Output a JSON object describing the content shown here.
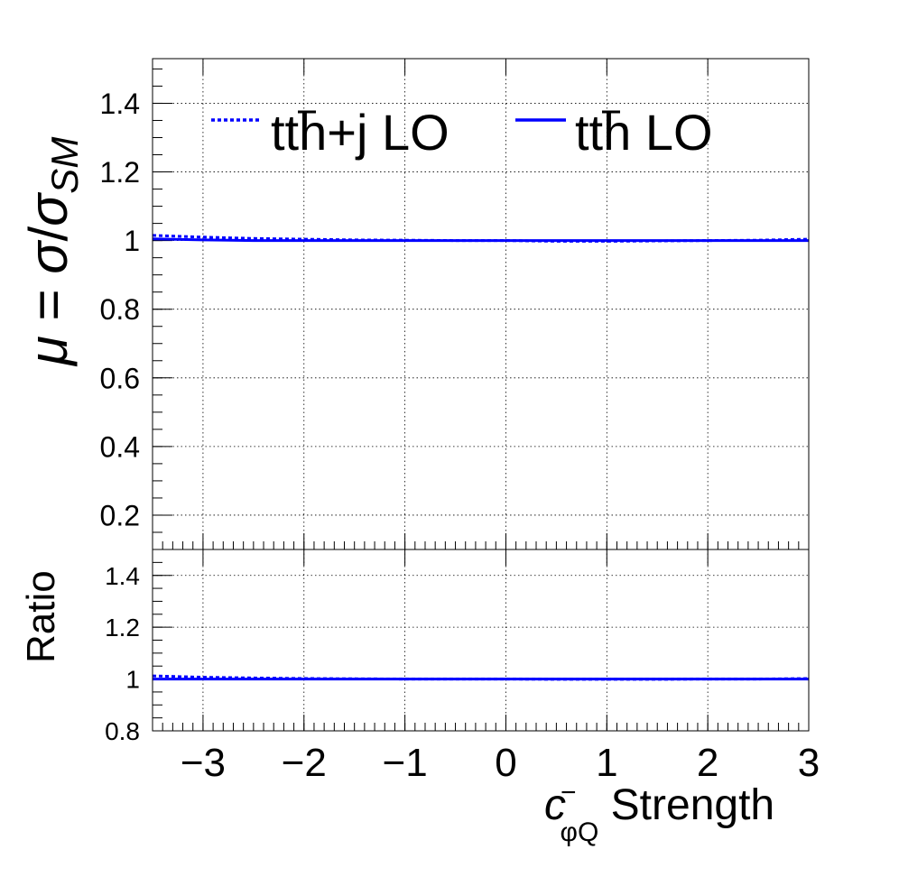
{
  "chart_data": [
    {
      "type": "line",
      "panel": "main",
      "ylabel": "μ = σ/σ_SM",
      "ylabel_parts": {
        "mu": "μ",
        "eq": " = ",
        "sigma": "σ",
        "slash": "/",
        "sigma2": "σ",
        "sub": "SM"
      },
      "xlim": [
        -3.5,
        3.0
      ],
      "ylim": [
        0.1,
        1.53
      ],
      "grid": true,
      "yticks": [
        0.2,
        0.4,
        0.6,
        0.8,
        1,
        1.2,
        1.4
      ],
      "ytick_labels": [
        "0.2",
        "0.4",
        "0.6",
        "0.8",
        "1",
        "1.2",
        "1.4"
      ],
      "legend": {
        "placement": "top",
        "entries": [
          {
            "label": "tt̄h+j LO",
            "base": "tt",
            "bar": "t",
            "rest": "h+j LO",
            "style": "dotted",
            "color": "#0000ff"
          },
          {
            "label": "tt̄h LO",
            "base": "tt",
            "bar": "t",
            "rest": "h LO",
            "style": "solid",
            "color": "#0000ff"
          }
        ]
      },
      "series": [
        {
          "name": "tt̄h+j LO",
          "style": "dotted",
          "color": "#0000ff",
          "x": [
            -3.5,
            -3.0,
            -2.5,
            -2.0,
            -1.5,
            -1.0,
            -0.5,
            0.0,
            0.5,
            1.0,
            1.5,
            2.0,
            2.5,
            3.0
          ],
          "y": [
            1.015,
            1.01,
            1.006,
            1.004,
            1.002,
            1.001,
            1.0,
            1.0,
            0.998,
            0.998,
            0.999,
            1.0,
            1.001,
            1.004
          ]
        },
        {
          "name": "tt̄h LO",
          "style": "solid",
          "color": "#0000ff",
          "x": [
            -3.5,
            -3.0,
            -2.5,
            -2.0,
            -1.5,
            -1.0,
            -0.5,
            0.0,
            0.5,
            1.0,
            1.5,
            2.0,
            2.5,
            3.0
          ],
          "y": [
            1.005,
            1.002,
            1.0,
            1.0,
            1.0,
            1.0,
            1.0,
            1.0,
            1.0,
            1.0,
            1.0,
            1.0,
            1.0,
            1.0
          ]
        }
      ]
    },
    {
      "type": "line",
      "panel": "ratio",
      "ylabel": "Ratio",
      "xlabel": "c⁻_φQ Strength",
      "xlabel_parts": {
        "c": "c",
        "sup": "−",
        "sub": "φQ",
        "rest": " Strength"
      },
      "xlim": [
        -3.5,
        3.0
      ],
      "ylim": [
        0.8,
        1.5
      ],
      "grid": true,
      "xticks": [
        -3,
        -2,
        -1,
        0,
        1,
        2,
        3
      ],
      "xtick_labels": [
        "−3",
        "−2",
        "−1",
        "0",
        "1",
        "2",
        "3"
      ],
      "yticks": [
        0.8,
        1,
        1.2,
        1.4
      ],
      "ytick_labels": [
        "0.8",
        "1",
        "1.2",
        "1.4"
      ],
      "series": [
        {
          "name": "tt̄h+j LO",
          "style": "dotted",
          "color": "#0000ff",
          "x": [
            -3.5,
            -3.0,
            -2.5,
            -2.0,
            -1.5,
            -1.0,
            -0.5,
            0.0,
            0.5,
            1.0,
            1.5,
            2.0,
            2.5,
            3.0
          ],
          "y": [
            1.012,
            1.007,
            1.004,
            1.002,
            1.001,
            1.0,
            1.0,
            1.0,
            0.999,
            0.999,
            0.999,
            1.0,
            1.0,
            1.002
          ]
        },
        {
          "name": "tt̄h LO",
          "style": "solid",
          "color": "#0000ff",
          "x": [
            -3.5,
            -3.0,
            -2.5,
            -2.0,
            -1.5,
            -1.0,
            -0.5,
            0.0,
            0.5,
            1.0,
            1.5,
            2.0,
            2.5,
            3.0
          ],
          "y": [
            1.0,
            1.0,
            1.0,
            1.0,
            1.0,
            1.0,
            1.0,
            1.0,
            1.0,
            1.0,
            1.0,
            1.0,
            1.0,
            1.0
          ]
        }
      ]
    }
  ]
}
